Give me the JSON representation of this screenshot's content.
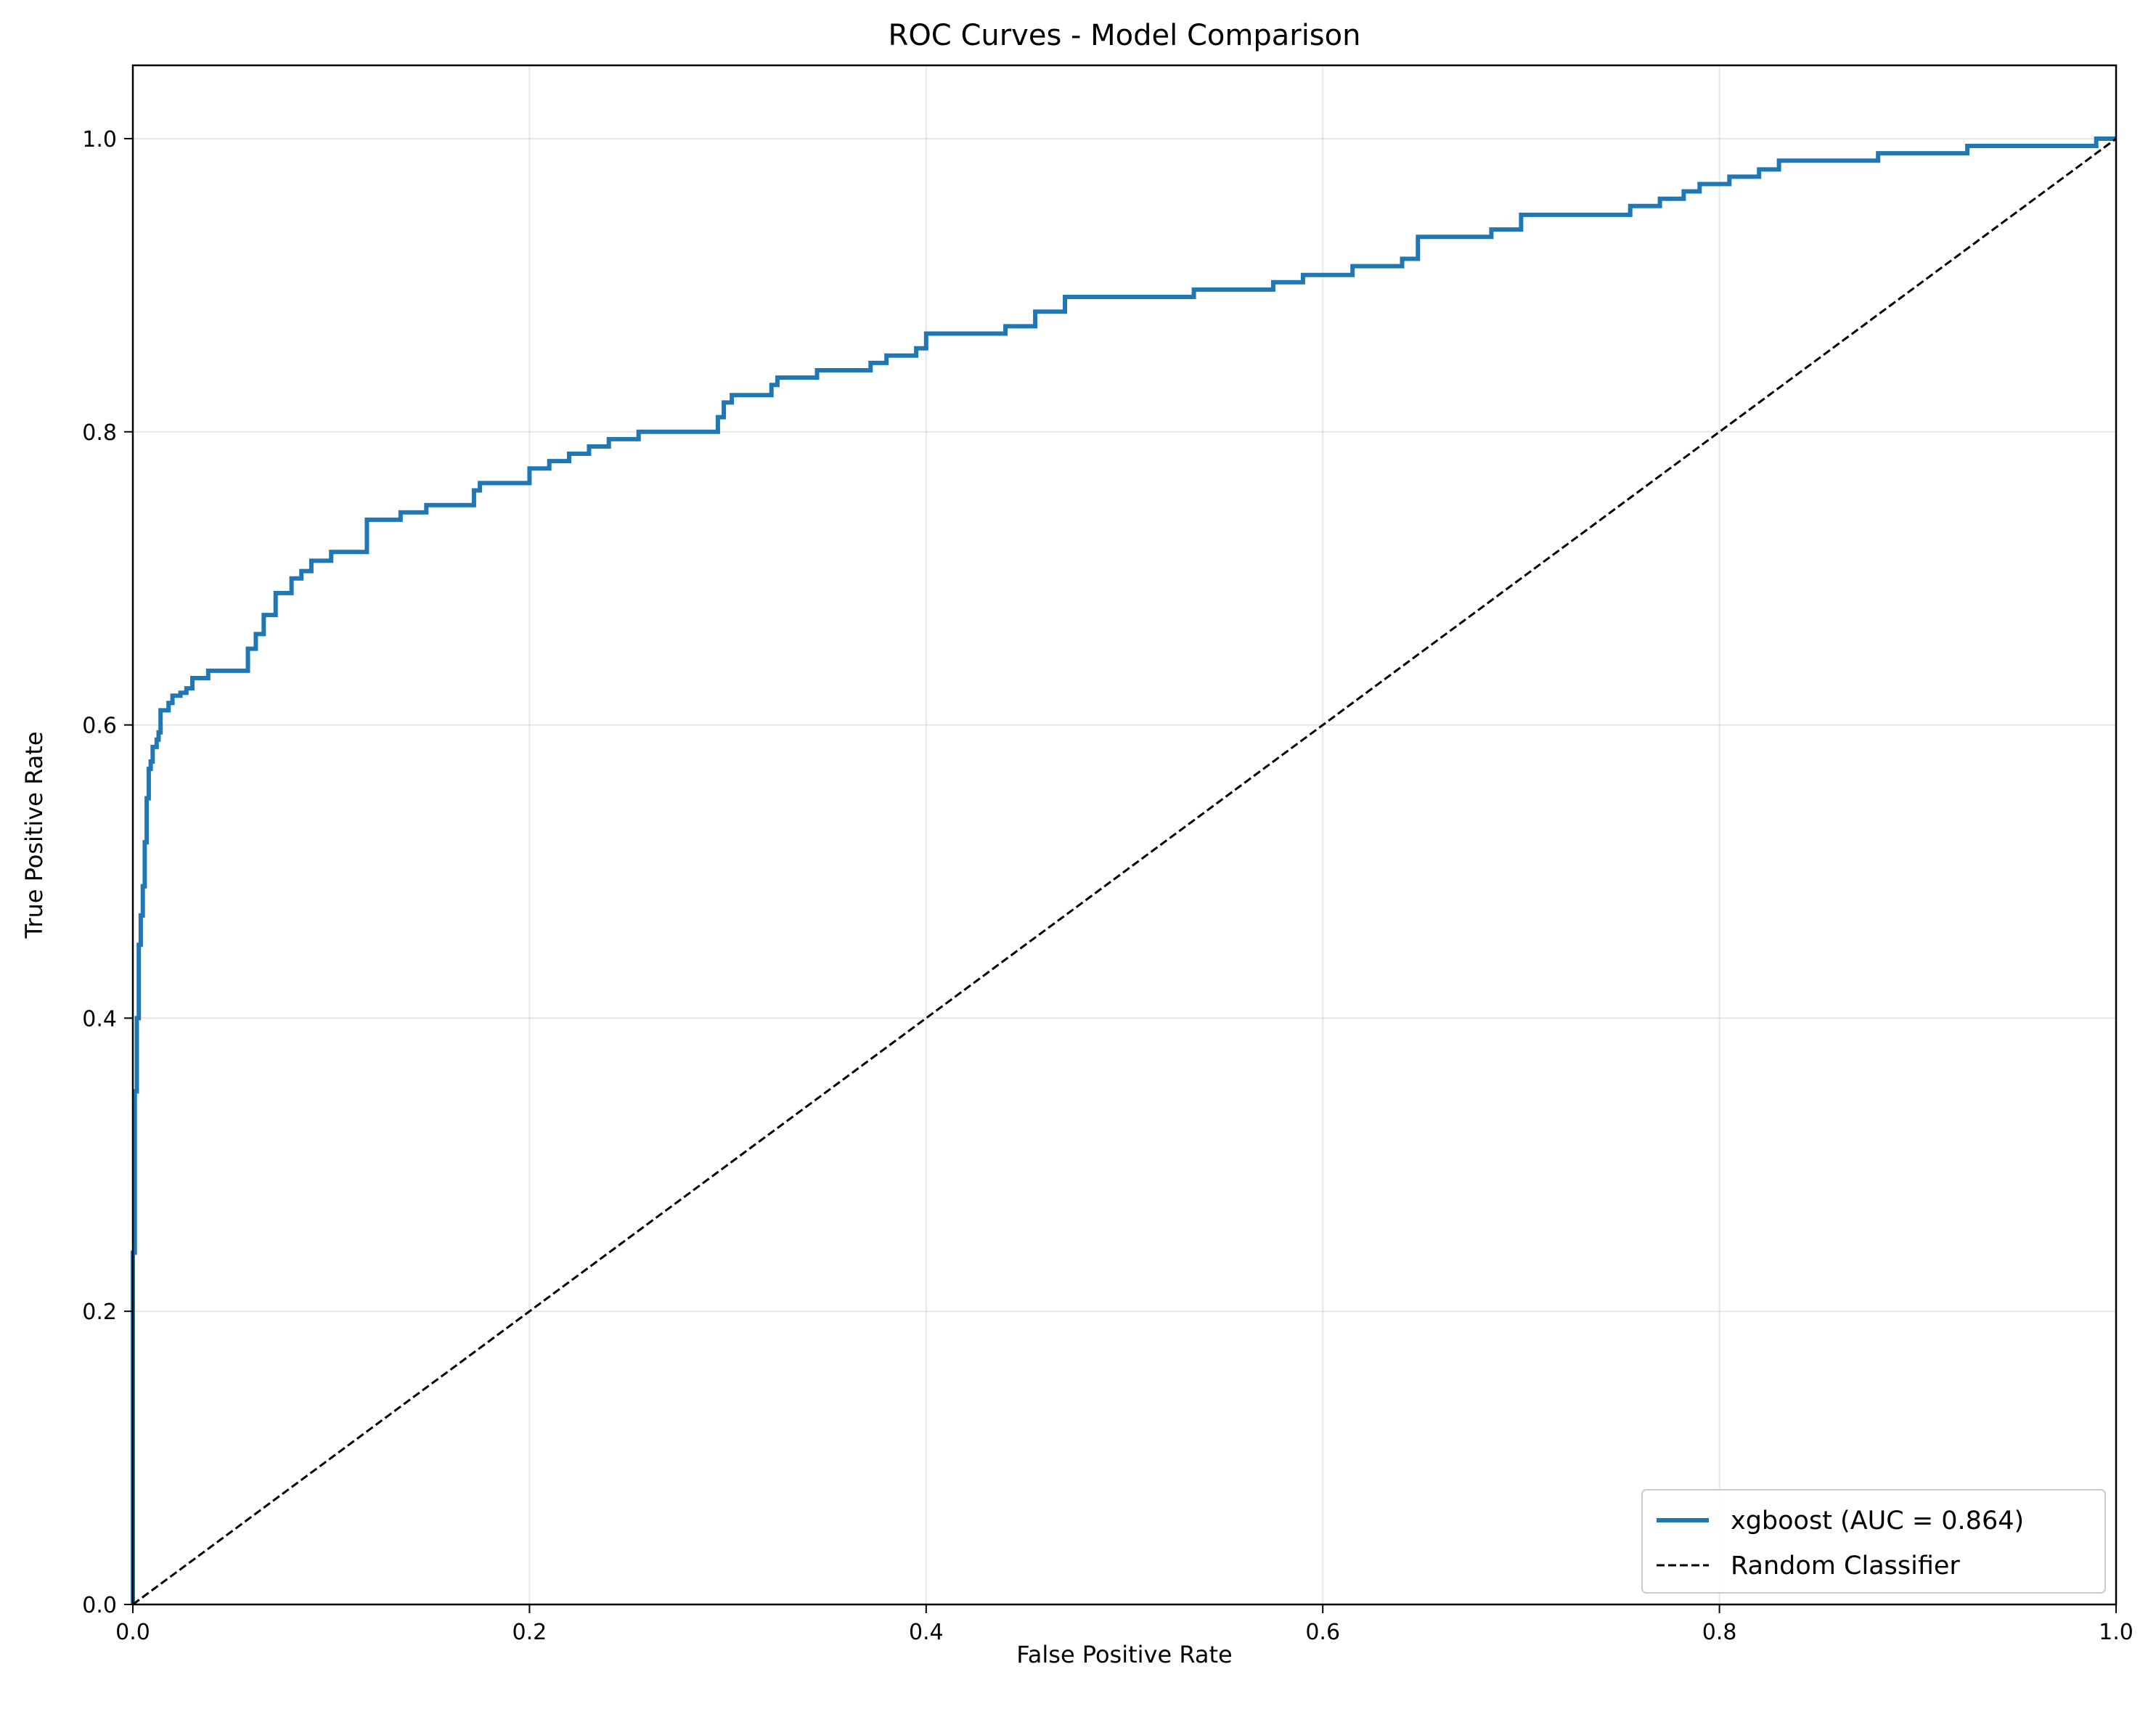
{
  "chart_data": {
    "type": "line",
    "title": "ROC Curves - Model Comparison",
    "xlabel": "False Positive Rate",
    "ylabel": "True Positive Rate",
    "xlim": [
      0,
      1
    ],
    "ylim": [
      0,
      1.05
    ],
    "xticks": [
      "0.0",
      "0.2",
      "0.4",
      "0.6",
      "0.8",
      "1.0"
    ],
    "yticks": [
      "0.0",
      "0.2",
      "0.4",
      "0.6",
      "0.8",
      "1.0"
    ],
    "grid": true,
    "legend_position": "lower-right",
    "series": [
      {
        "name": "xgboost (AUC = 0.864)",
        "color": "#1f77b4",
        "style": "solid",
        "x": [
          0.0,
          0.0,
          0.001,
          0.001,
          0.002,
          0.003,
          0.003,
          0.004,
          0.005,
          0.005,
          0.006,
          0.007,
          0.008,
          0.008,
          0.009,
          0.01,
          0.011,
          0.012,
          0.013,
          0.014,
          0.016,
          0.018,
          0.02,
          0.022,
          0.024,
          0.027,
          0.03,
          0.035,
          0.038,
          0.05,
          0.058,
          0.062,
          0.066,
          0.069,
          0.072,
          0.076,
          0.08,
          0.085,
          0.09,
          0.098,
          0.1,
          0.113,
          0.118,
          0.135,
          0.148,
          0.168,
          0.172,
          0.175,
          0.2,
          0.21,
          0.22,
          0.23,
          0.24,
          0.255,
          0.292,
          0.295,
          0.298,
          0.302,
          0.31,
          0.322,
          0.325,
          0.345,
          0.372,
          0.38,
          0.395,
          0.4,
          0.44,
          0.455,
          0.47,
          0.535,
          0.575,
          0.59,
          0.615,
          0.64,
          0.648,
          0.685,
          0.7,
          0.74,
          0.755,
          0.77,
          0.782,
          0.79,
          0.805,
          0.82,
          0.83,
          0.88,
          0.925,
          0.99,
          1.0
        ],
        "y": [
          0.0,
          0.24,
          0.29,
          0.35,
          0.4,
          0.41,
          0.45,
          0.47,
          0.48,
          0.49,
          0.52,
          0.55,
          0.56,
          0.57,
          0.575,
          0.585,
          0.585,
          0.59,
          0.595,
          0.61,
          0.61,
          0.615,
          0.62,
          0.62,
          0.622,
          0.625,
          0.632,
          0.632,
          0.637,
          0.637,
          0.652,
          0.662,
          0.675,
          0.675,
          0.69,
          0.69,
          0.7,
          0.705,
          0.712,
          0.712,
          0.718,
          0.718,
          0.74,
          0.745,
          0.75,
          0.75,
          0.76,
          0.765,
          0.775,
          0.78,
          0.785,
          0.79,
          0.795,
          0.8,
          0.8,
          0.81,
          0.82,
          0.825,
          0.825,
          0.832,
          0.837,
          0.842,
          0.847,
          0.852,
          0.857,
          0.867,
          0.872,
          0.882,
          0.892,
          0.897,
          0.902,
          0.907,
          0.913,
          0.918,
          0.933,
          0.938,
          0.948,
          0.948,
          0.954,
          0.959,
          0.964,
          0.969,
          0.974,
          0.979,
          0.985,
          0.99,
          0.995,
          1.0,
          1.0
        ]
      },
      {
        "name": "Random Classifier",
        "color": "#000000",
        "style": "dashed",
        "x": [
          0,
          1
        ],
        "y": [
          0,
          1
        ]
      }
    ]
  }
}
